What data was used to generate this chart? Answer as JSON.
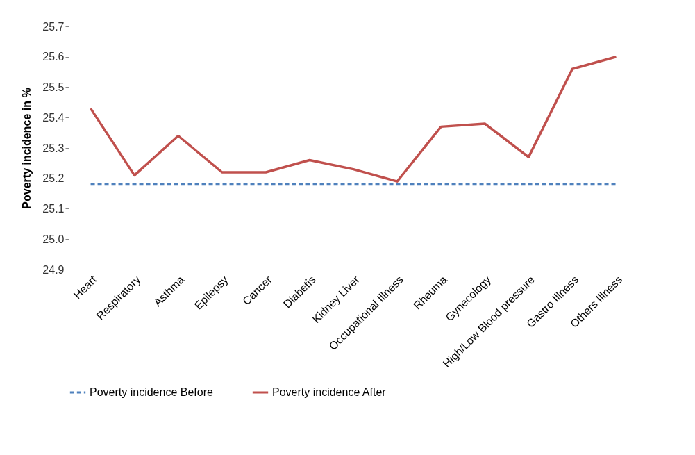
{
  "chart_data": {
    "type": "line",
    "ylabel": "Poverty incidence in %",
    "categories": [
      "Heart",
      "Respiratory",
      "Asthma",
      "Epilepsy",
      "Cancer",
      "Diabetis",
      "Kidney Liver",
      "Occupational Illness",
      "Rheuma",
      "Gynecology",
      "High/Low Blood pressure",
      "Gastro Illness",
      "Others Illness"
    ],
    "series": [
      {
        "name": "Poverty incidence Before",
        "color": "#4f81bd",
        "line_style": "dashed",
        "values": [
          25.18,
          25.18,
          25.18,
          25.18,
          25.18,
          25.18,
          25.18,
          25.18,
          25.18,
          25.18,
          25.18,
          25.18,
          25.18
        ]
      },
      {
        "name": "Poverty incidence After",
        "color": "#c0504d",
        "line_style": "solid",
        "values": [
          25.43,
          25.21,
          25.34,
          25.22,
          25.22,
          25.26,
          25.23,
          25.19,
          25.37,
          25.38,
          25.27,
          25.56,
          25.6
        ]
      }
    ],
    "ylim": [
      24.9,
      25.7
    ],
    "yticks": [
      {
        "value": 24.9,
        "label": "24.9"
      },
      {
        "value": 25.0,
        "label": "25.0"
      },
      {
        "value": 25.1,
        "label": "25.1"
      },
      {
        "value": 25.2,
        "label": "25.2"
      },
      {
        "value": 25.3,
        "label": "25.3"
      },
      {
        "value": 25.4,
        "label": "25.4"
      },
      {
        "value": 25.5,
        "label": "25.5"
      },
      {
        "value": 25.6,
        "label": "25.6"
      },
      {
        "value": 25.7,
        "label": "25.7"
      }
    ],
    "grid": false,
    "legend": "bottom",
    "marker": "none"
  }
}
